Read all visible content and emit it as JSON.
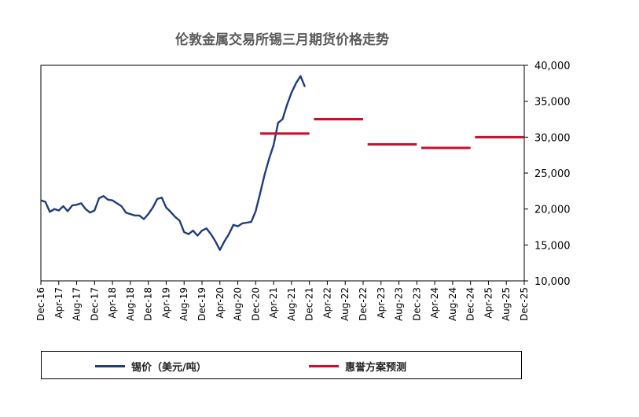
{
  "chart_data": {
    "type": "line",
    "title": "伦敦金属交易所锡三月期货价格走势",
    "xlabel": "",
    "ylabel": "",
    "y_axis_position": "right",
    "ylim": [
      10000,
      40000
    ],
    "y_ticks": [
      10000,
      15000,
      20000,
      25000,
      30000,
      35000,
      40000
    ],
    "y_tick_labels": [
      "10,000",
      "15,000",
      "20,000",
      "25,000",
      "30,000",
      "35,000",
      "40,000"
    ],
    "x_tick_labels": [
      "Dec-16",
      "Apr-17",
      "Aug-17",
      "Dec-17",
      "Apr-18",
      "Aug-18",
      "Dec-18",
      "Apr-19",
      "Aug-19",
      "Dec-19",
      "Apr-20",
      "Aug-20",
      "Dec-20",
      "Apr-21",
      "Aug-21",
      "Dec-21",
      "Apr-22",
      "Aug-22",
      "Dec-22",
      "Apr-23",
      "Aug-23",
      "Dec-23",
      "Apr-24",
      "Aug-24",
      "Dec-24",
      "Apr-25",
      "Aug-25",
      "Dec-25"
    ],
    "legend_position": "bottom",
    "series": [
      {
        "name": "锡价（美元/吨）",
        "color": "#1f3d7a",
        "style": "line",
        "x": [
          "Dec-16",
          "Jan-17",
          "Feb-17",
          "Mar-17",
          "Apr-17",
          "May-17",
          "Jun-17",
          "Jul-17",
          "Aug-17",
          "Sep-17",
          "Oct-17",
          "Nov-17",
          "Dec-17",
          "Jan-18",
          "Feb-18",
          "Mar-18",
          "Apr-18",
          "May-18",
          "Jun-18",
          "Jul-18",
          "Aug-18",
          "Sep-18",
          "Oct-18",
          "Nov-18",
          "Dec-18",
          "Jan-19",
          "Feb-19",
          "Mar-19",
          "Apr-19",
          "May-19",
          "Jun-19",
          "Jul-19",
          "Aug-19",
          "Sep-19",
          "Oct-19",
          "Nov-19",
          "Dec-19",
          "Jan-20",
          "Feb-20",
          "Mar-20",
          "Apr-20",
          "May-20",
          "Jun-20",
          "Jul-20",
          "Aug-20",
          "Sep-20",
          "Oct-20",
          "Nov-20",
          "Dec-20",
          "Jan-21",
          "Feb-21",
          "Mar-21",
          "Apr-21",
          "May-21",
          "Jun-21",
          "Jul-21",
          "Aug-21",
          "Sep-21",
          "Oct-21",
          "Nov-21"
        ],
        "values": [
          21200,
          21000,
          19600,
          20000,
          19800,
          20400,
          19700,
          20500,
          20600,
          20800,
          20000,
          19500,
          19800,
          21500,
          21800,
          21300,
          21200,
          20800,
          20400,
          19500,
          19300,
          19100,
          19100,
          18600,
          19300,
          20200,
          21400,
          21600,
          20200,
          19600,
          18900,
          18400,
          16800,
          16500,
          17000,
          16300,
          17000,
          17300,
          16500,
          15500,
          14300,
          15500,
          16500,
          17800,
          17600,
          18000,
          18100,
          18200,
          19700,
          22200,
          24800,
          27000,
          28900,
          32000,
          32500,
          34500,
          36200,
          37500,
          38500,
          37000
        ]
      },
      {
        "name": "惠誉方案预测",
        "color": "#c8102e",
        "style": "segments",
        "segments": [
          {
            "from": "Jan-21",
            "to": "Dec-21",
            "value": 30500
          },
          {
            "from": "Jan-22",
            "to": "Dec-22",
            "value": 32500
          },
          {
            "from": "Jan-23",
            "to": "Dec-23",
            "value": 29000
          },
          {
            "from": "Jan-24",
            "to": "Dec-24",
            "value": 28500
          },
          {
            "from": "Jan-25",
            "to": "Dec-25",
            "value": 30000
          }
        ]
      }
    ]
  }
}
